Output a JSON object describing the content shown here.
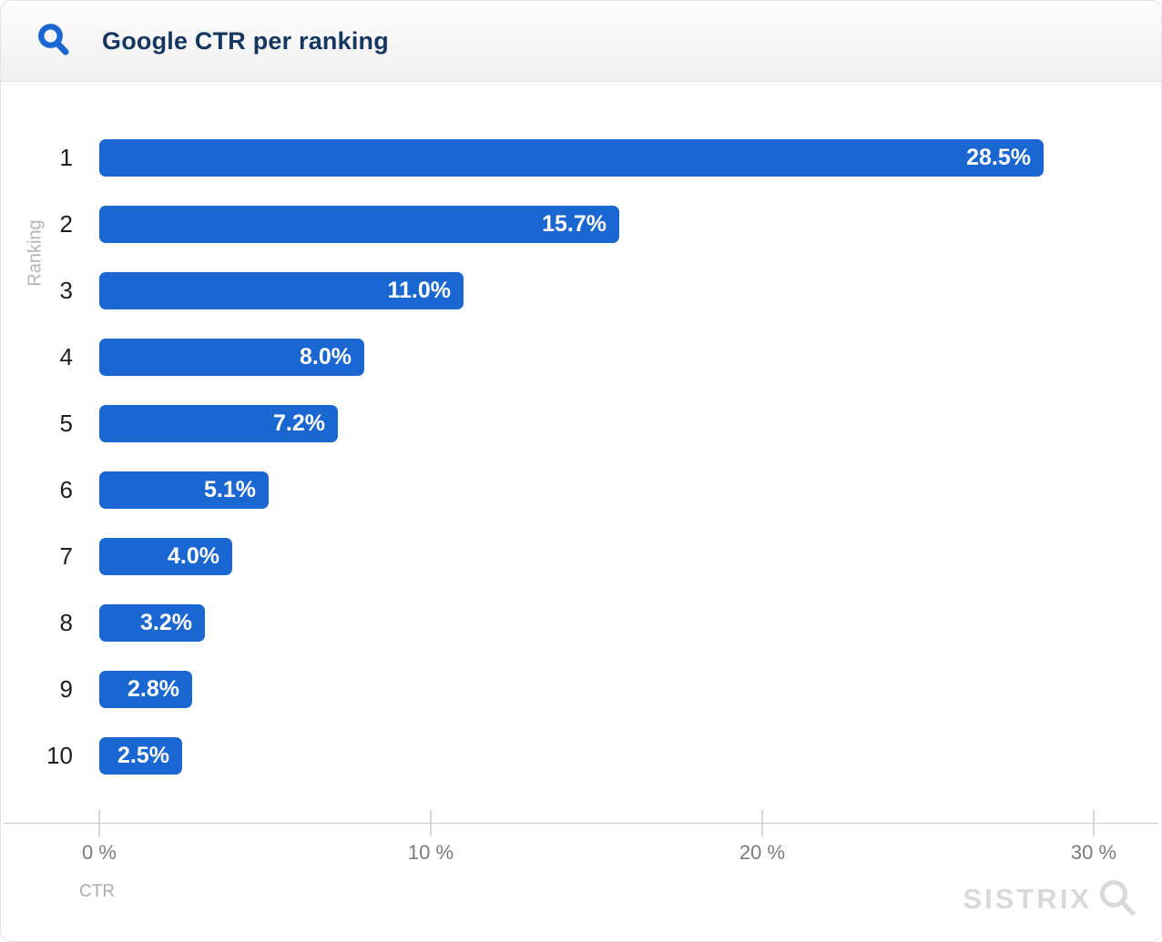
{
  "header": {
    "title": "Google CTR per ranking"
  },
  "colors": {
    "accent_blue": "#1b67d2",
    "bar_blue": "#1b67d2",
    "title_navy": "#15365e",
    "watermark_gray": "#d9d9da"
  },
  "chart_data": {
    "type": "bar",
    "orientation": "horizontal",
    "title": "Google CTR per ranking",
    "categories": [
      "1",
      "2",
      "3",
      "4",
      "5",
      "6",
      "7",
      "8",
      "9",
      "10"
    ],
    "values": [
      28.5,
      15.7,
      11.0,
      8.0,
      7.2,
      5.1,
      4.0,
      3.2,
      2.8,
      2.5
    ],
    "data_labels": [
      "28.5%",
      "15.7%",
      "11.0%",
      "8.0%",
      "7.2%",
      "5.1%",
      "4.0%",
      "3.2%",
      "2.8%",
      "2.5%"
    ],
    "xlabel": "CTR",
    "ylabel": "Ranking",
    "xlim": [
      0,
      32
    ],
    "x_ticks": [
      {
        "value": 0,
        "label": "0 %"
      },
      {
        "value": 10,
        "label": "10 %"
      },
      {
        "value": 20,
        "label": "20 %"
      },
      {
        "value": 30,
        "label": "30 %"
      }
    ],
    "grid": false,
    "legend": "none",
    "bar_color": "#1b67d2"
  },
  "watermark": {
    "text": "SISTRIX"
  }
}
